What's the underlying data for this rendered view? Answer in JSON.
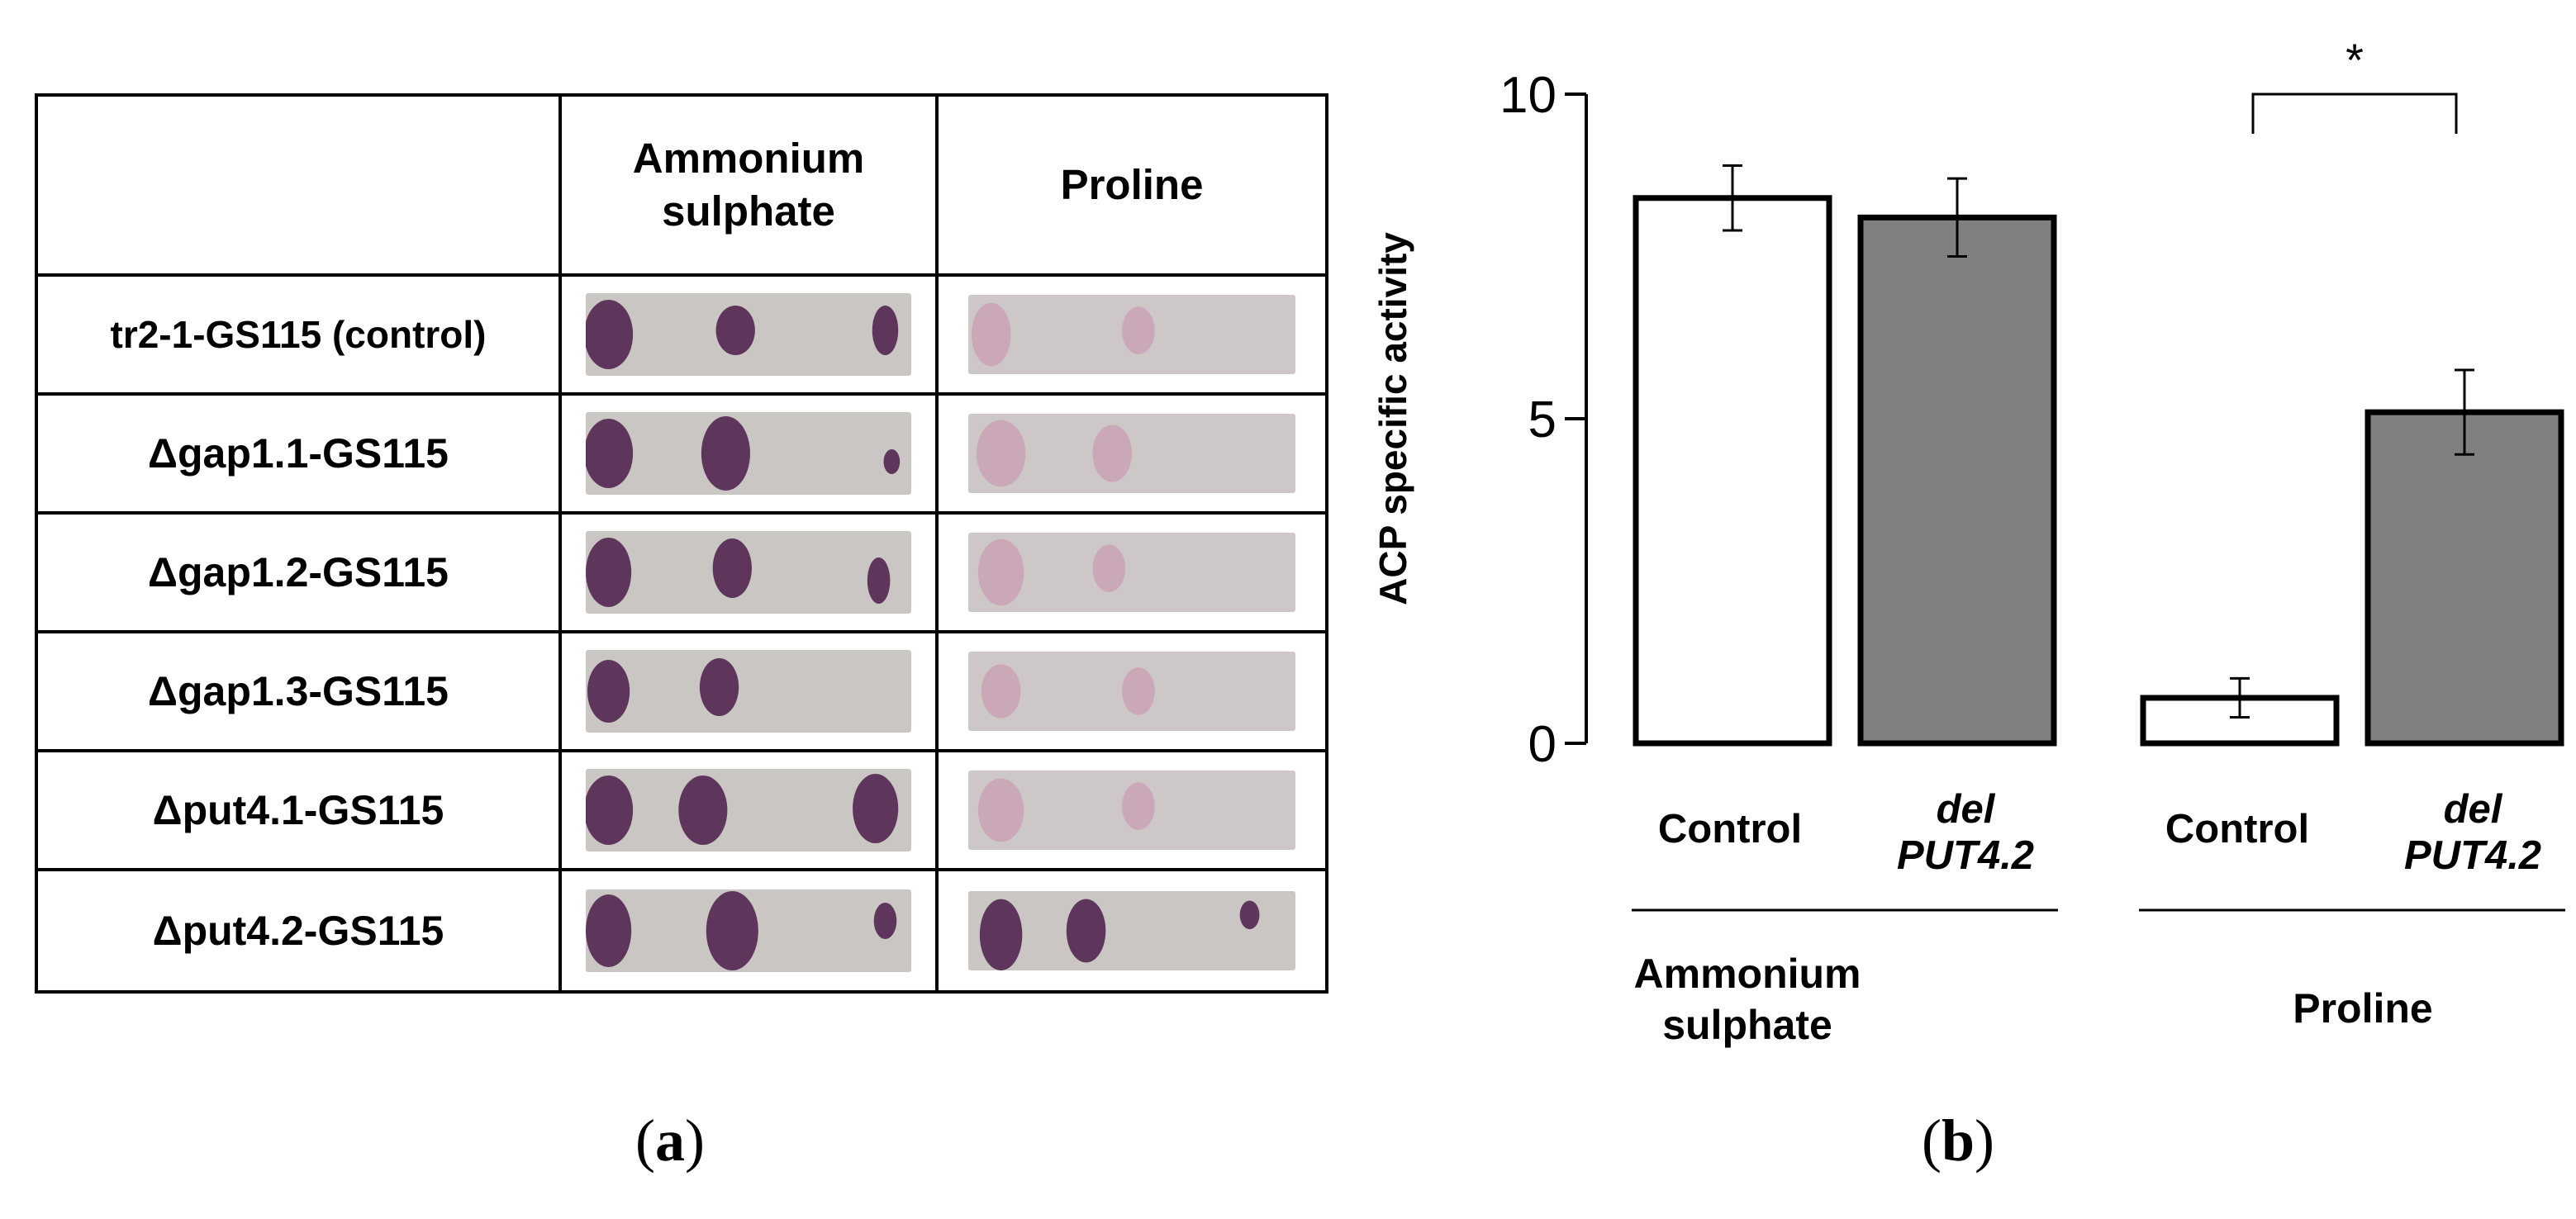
{
  "panel_a": {
    "header": {
      "col_blank": "",
      "col_ammonium": "Ammonium sulphate",
      "col_proline": "Proline"
    },
    "rows": [
      {
        "strain": "tr2-1-GS115 (control)"
      },
      {
        "strain": "Δgap1.1-GS115"
      },
      {
        "strain": "Δgap1.2-GS115"
      },
      {
        "strain": "Δgap1.3-GS115"
      },
      {
        "strain": "Δput4.1-GS115"
      },
      {
        "strain": "Δput4.2-GS115"
      }
    ],
    "label_open": "(",
    "label_letter": "a",
    "label_close": ")"
  },
  "panel_b": {
    "label_open": "(",
    "label_letter": "b",
    "label_close": ")"
  },
  "colors": {
    "control_bar": "#ffffff",
    "deletion_bar": "#808080",
    "plate_bg": "#c9c6c4",
    "spot": "#5a2e55"
  },
  "chart_data": {
    "type": "bar",
    "ylabel": "ACP specific activity",
    "xlabel": "",
    "ylim": [
      0,
      10
    ],
    "yticks": [
      0,
      5,
      10
    ],
    "groups": [
      {
        "name": "Ammonium sulphate",
        "bars": [
          {
            "label": "Control",
            "value": 8.4,
            "error": 0.5,
            "color": "#ffffff"
          },
          {
            "label": "del PUT4.2",
            "value": 8.1,
            "error": 0.6,
            "color": "#808080"
          }
        ]
      },
      {
        "name": "Proline",
        "bars": [
          {
            "label": "Control",
            "value": 0.7,
            "error": 0.3,
            "color": "#ffffff"
          },
          {
            "label": "del PUT4.2",
            "value": 5.1,
            "error": 0.65,
            "color": "#808080"
          }
        ]
      }
    ],
    "bar_label_parts": {
      "del_word": "del",
      "gene": "PUT4.2"
    },
    "annotations": [
      {
        "text": "*",
        "between": [
          "Proline Control",
          "Proline del PUT4.2"
        ]
      }
    ],
    "grid": false,
    "legend": "none"
  }
}
